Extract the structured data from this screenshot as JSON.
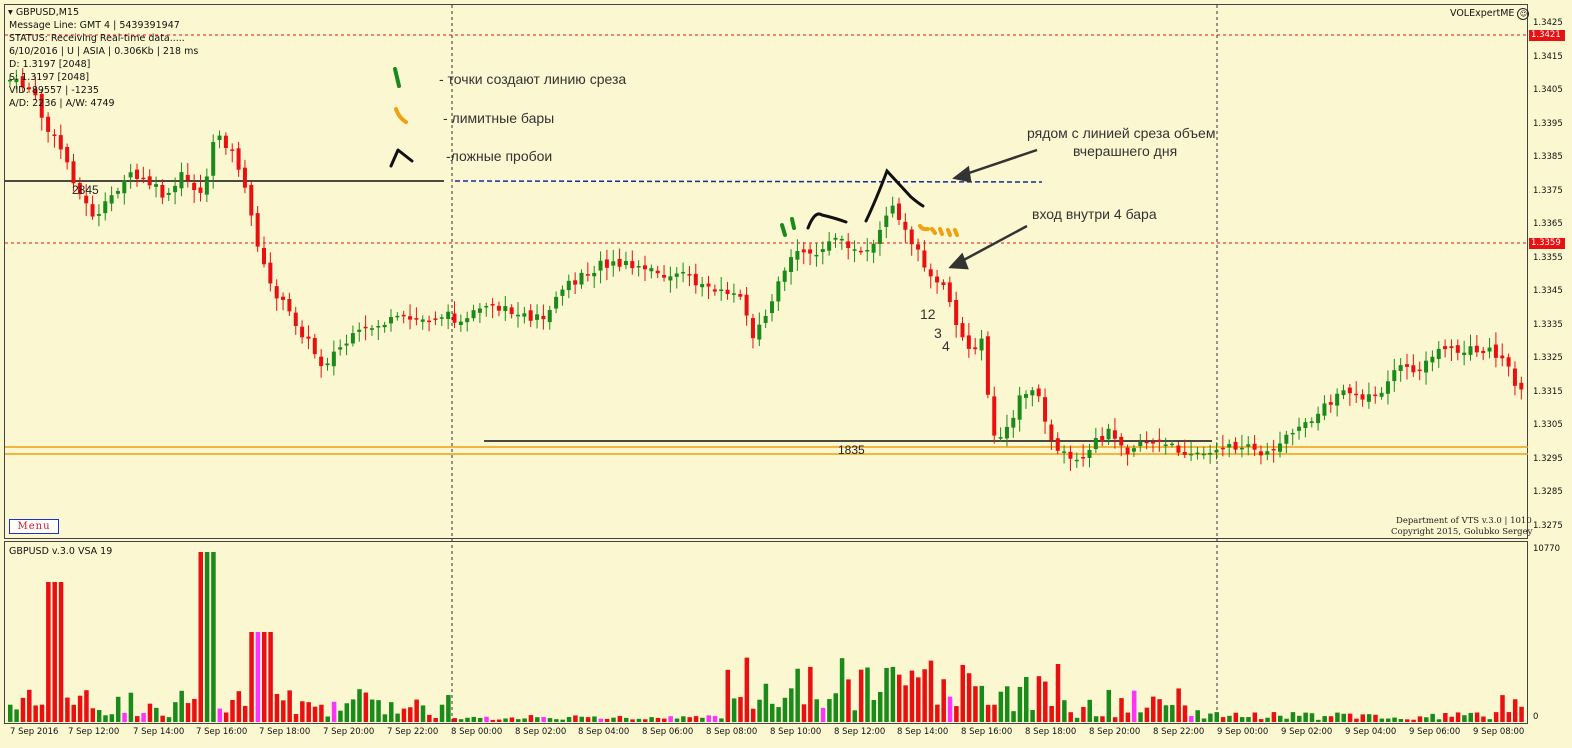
{
  "chart": {
    "symbol_label": "GBPUSD,M15",
    "info_lines": [
      "Message Line: GMT 4 | 5439391947",
      "STATUS: Receiving Real-time data.....",
      "6/10/2016 | U | ASIA | 0.306Kb | 218 ms",
      "D: 1.3197  [2048]",
      "S: 1.3197  [2048]",
      "VID: 89557 | -1235",
      "A/D: 2236 | A/W: 4749"
    ],
    "expert_label": "VOLExpertME",
    "menu_label": "Menu",
    "copyright_lines": [
      "Department of VTS  v.3.0 | 1010",
      "Copyright 2015, Golubko Sergey"
    ],
    "level_2845": "2845",
    "level_1835": "1835",
    "bar_numbers": [
      "12",
      "3",
      "4"
    ],
    "price_boxes": [
      "1.3421",
      "1.3359"
    ],
    "price_axis": [
      "1.3425",
      "1.3415",
      "1.3405",
      "1.3395",
      "1.3385",
      "1.3375",
      "1.3365",
      "1.3355",
      "1.3345",
      "1.3335",
      "1.3325",
      "1.3315",
      "1.3305",
      "1.3295",
      "1.3285",
      "1.3275"
    ],
    "time_axis": [
      "7 Sep 2016",
      "7 Sep 12:00",
      "7 Sep 14:00",
      "7 Sep 16:00",
      "7 Sep 18:00",
      "7 Sep 20:00",
      "7 Sep 22:00",
      "8 Sep 00:00",
      "8 Sep 02:00",
      "8 Sep 04:00",
      "8 Sep 06:00",
      "8 Sep 08:00",
      "8 Sep 10:00",
      "8 Sep 12:00",
      "8 Sep 14:00",
      "8 Sep 16:00",
      "8 Sep 18:00",
      "8 Sep 20:00",
      "8 Sep 22:00",
      "9 Sep 00:00",
      "9 Sep 02:00",
      "9 Sep 04:00",
      "9 Sep 06:00",
      "9 Sep 08:00"
    ]
  },
  "annotations": {
    "legend_dots": "- точки создают линию среза",
    "legend_limit": "- лимитные бары",
    "legend_false": "-ложные пробои",
    "note_volume": "рядом с линией среза объем\nвчерашнего дня",
    "note_volume_line1": "рядом с линией среза объем",
    "note_volume_line2": "вчерашнего дня",
    "note_entry": "вход внутри 4 бара"
  },
  "volume_pane": {
    "label": "GBPUSD v.3.0 VSA 19",
    "max_label": "10770",
    "zero_label": "0"
  },
  "colors": {
    "background": "#fbf7d0",
    "bull": "#1a8a1a",
    "bear": "#e81010",
    "volume_magenta": "#ff33ff",
    "level_orange": "#f0a010",
    "dashed_blue": "#1a2a9a"
  }
}
